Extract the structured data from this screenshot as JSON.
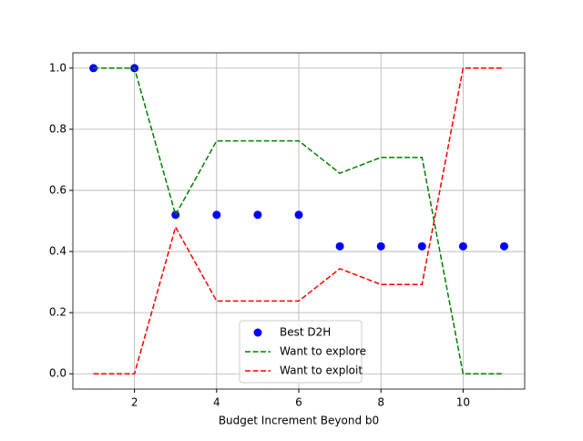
{
  "chart_data": {
    "type": "line",
    "x_label": "Budget Increment Beyond b0",
    "x": [
      1,
      2,
      3,
      4,
      5,
      6,
      7,
      8,
      9,
      10,
      11
    ],
    "series": [
      {
        "name": "Best D2H",
        "color": "#0000ff",
        "kind": "scatter",
        "values": [
          1,
          1,
          0.52,
          0.52,
          0.52,
          0.52,
          0.417,
          0.417,
          0.417,
          0.417,
          0.417
        ]
      },
      {
        "name": "Want to explore",
        "color": "#008000",
        "kind": "dashed",
        "values": [
          1,
          1,
          0.52,
          0.762,
          0.762,
          0.762,
          0.656,
          0.708,
          0.708,
          0,
          0
        ]
      },
      {
        "name": "Want to exploit",
        "color": "#ff0000",
        "kind": "dashed",
        "values": [
          0,
          0,
          0.48,
          0.238,
          0.238,
          0.238,
          0.344,
          0.292,
          0.292,
          1,
          1
        ]
      }
    ],
    "xlim": [
      0.5,
      11.5
    ],
    "ylim": [
      -0.05,
      1.05
    ],
    "xticks": [
      2,
      4,
      6,
      8,
      10
    ],
    "yticks": [
      {
        "value": 0,
        "label": "0.0"
      },
      {
        "value": 0.2,
        "label": "0.2"
      },
      {
        "value": 0.4,
        "label": "0.4"
      },
      {
        "value": 0.6,
        "label": "0.6"
      },
      {
        "value": 0.8,
        "label": "0.8"
      },
      {
        "value": 1,
        "label": "1.0"
      }
    ],
    "grid": true,
    "legend": "lower center"
  }
}
